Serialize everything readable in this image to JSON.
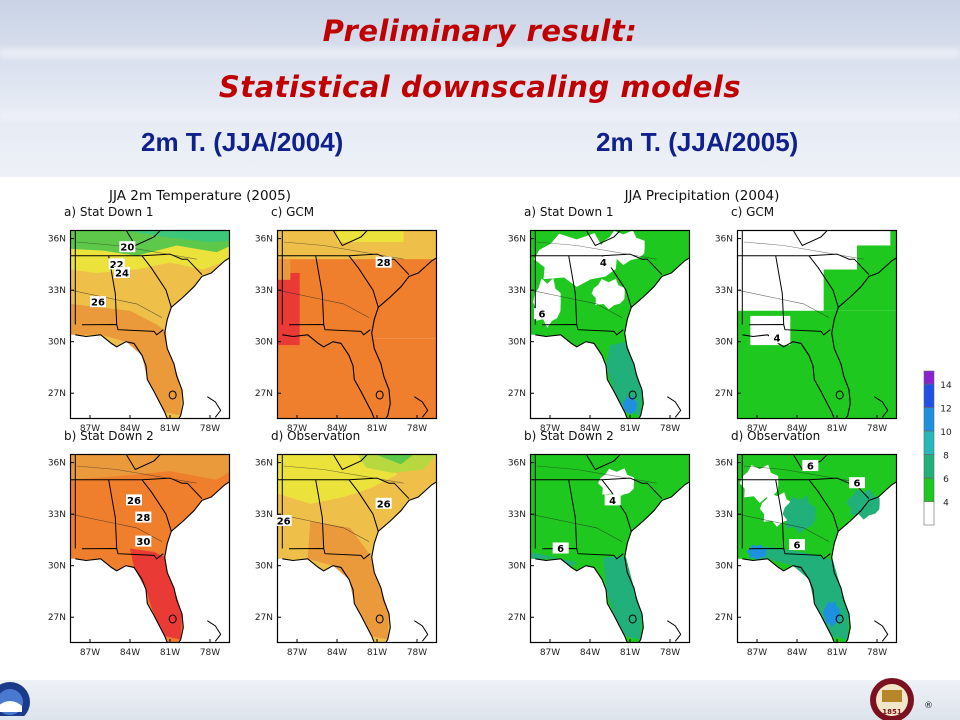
{
  "slide": {
    "title_line1": "Preliminary result:",
    "title_line2": "Statistical downscaling models",
    "subtitle_left": "2m T. (JJA/2004)",
    "subtitle_right": "2m T. (JJA/2005)"
  },
  "figures": [
    {
      "title": "JJA 2m Temperature (2005)",
      "panels": [
        {
          "label": "a) Stat Down 1",
          "fill": "tempA",
          "contour_labels": [
            {
              "text": "20"
            },
            {
              "text": "22"
            },
            {
              "text": "24"
            },
            {
              "text": "26"
            }
          ]
        },
        {
          "label": "c) GCM",
          "fill": "tempC",
          "contour_labels": [
            {
              "text": "28"
            }
          ]
        },
        {
          "label": "b) Stat Down 2",
          "fill": "tempB",
          "contour_labels": [
            {
              "text": "26"
            },
            {
              "text": "28"
            },
            {
              "text": "30"
            }
          ]
        },
        {
          "label": "d) Observation",
          "fill": "tempD",
          "contour_labels": [
            {
              "text": "26"
            },
            {
              "text": "26"
            }
          ]
        }
      ]
    },
    {
      "title": "JJA Precipitation (2004)",
      "panels": [
        {
          "label": "a) Stat Down 1",
          "fill": "precA",
          "contour_labels": [
            {
              "text": "4"
            },
            {
              "text": "6"
            }
          ]
        },
        {
          "label": "c) GCM",
          "fill": "precC",
          "contour_labels": [
            {
              "text": "4"
            }
          ]
        },
        {
          "label": "b) Stat Down 2",
          "fill": "precB",
          "contour_labels": [
            {
              "text": "4"
            },
            {
              "text": "6"
            }
          ]
        },
        {
          "label": "d) Observation",
          "fill": "precD",
          "contour_labels": [
            {
              "text": "6"
            },
            {
              "text": "6"
            },
            {
              "text": "6"
            }
          ]
        }
      ]
    }
  ],
  "axes": {
    "y_ticks": [
      "36N",
      "33N",
      "30N",
      "27N"
    ],
    "x_ticks": [
      "87W",
      "84W",
      "81W",
      "78W"
    ]
  },
  "colorbar": {
    "ticks": [
      "14",
      "12",
      "10",
      "8",
      "6",
      "4"
    ],
    "colors": [
      "#ffffff",
      "#1fc81f",
      "#22b07a",
      "#25b8b8",
      "#1e90e0",
      "#2050e8",
      "#8a20d0"
    ]
  },
  "temperature_palette": {
    "cool": "#3cc878",
    "green": "#5ec84a",
    "yellow_green": "#b8d840",
    "yellow": "#ebe23c",
    "orange_light": "#eec04a",
    "orange": "#ea9a3a",
    "orange_deep": "#ef7f2c",
    "red": "#ea3a36"
  }
}
